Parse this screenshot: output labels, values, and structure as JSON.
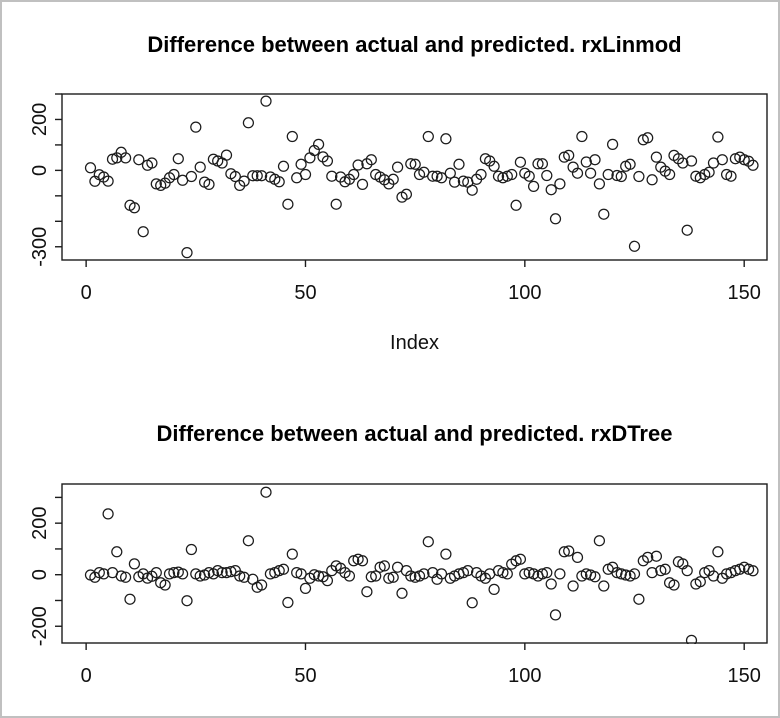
{
  "window": {
    "background": "#ffffff",
    "border_color": "#c0c0c0",
    "point_color": "#1c1c1c",
    "axis_color": "#1c1c1c"
  },
  "chart_data": [
    {
      "type": "scatter",
      "title": "Difference between actual and predicted. rxLinmod",
      "xlabel": "Index",
      "ylabel": "",
      "marker": "open-circle",
      "grid": false,
      "legend": "none",
      "x_description": "index 1..152 (implicit x = position in values array, starting at 1)",
      "xlim": [
        -5.5,
        155.2
      ],
      "ylim": [
        -352,
        300
      ],
      "x_ticks": [
        0,
        50,
        100,
        150
      ],
      "x_labeled_ticks": [
        0,
        50,
        100,
        150
      ],
      "y_ticks": [
        300,
        200,
        100,
        0,
        -100,
        -200,
        -300
      ],
      "y_labeled_ticks": [
        200,
        0,
        -300
      ],
      "values": [
        10,
        -43,
        -17,
        -26,
        -42,
        44,
        49,
        71,
        49,
        -137,
        -147,
        42,
        -241,
        20,
        29,
        -53,
        -59,
        -50,
        -29,
        -16,
        46,
        -39,
        -323,
        -24,
        170,
        13,
        -46,
        -55,
        44,
        37,
        29,
        60,
        -13,
        -24,
        -59,
        -42,
        187,
        -21,
        -21,
        -21,
        272,
        -26,
        -35,
        -45,
        16,
        -133,
        133,
        -29,
        24,
        -16,
        49,
        78,
        102,
        53,
        37,
        -23,
        -133,
        -26,
        -45,
        -35,
        -16,
        21,
        -55,
        26,
        42,
        -16,
        -26,
        -37,
        -53,
        -35,
        13,
        -105,
        -94,
        26,
        24,
        -16,
        -7,
        133,
        -23,
        -23,
        -29,
        124,
        -11,
        -46,
        24,
        -42,
        -46,
        -78,
        -35,
        -16,
        46,
        37,
        16,
        -23,
        -29,
        -23,
        -16,
        -137,
        32,
        -11,
        -23,
        -63,
        26,
        26,
        -20,
        -76,
        -190,
        -53,
        52,
        59,
        13,
        -11,
        133,
        33,
        -11,
        42,
        -53,
        -172,
        -16,
        102,
        -20,
        -24,
        16,
        24,
        -298,
        -24,
        120,
        128,
        -37,
        52,
        13,
        -3,
        -16,
        59,
        46,
        29,
        -235,
        37,
        -23,
        -29,
        -16,
        -7,
        29,
        131,
        42,
        -16,
        -23,
        46,
        52,
        42,
        36,
        20
      ]
    },
    {
      "type": "scatter",
      "title": "Difference between actual and predicted. rxDTree",
      "xlabel": "",
      "ylabel": "",
      "marker": "open-circle",
      "grid": false,
      "legend": "none",
      "x_description": "index 1..152 (implicit x = position in values array, starting at 1)",
      "xlim": [
        -5.5,
        155.2
      ],
      "ylim": [
        -265,
        352
      ],
      "x_ticks": [
        0,
        50,
        100,
        150
      ],
      "x_labeled_ticks": [
        0,
        50,
        100,
        150
      ],
      "y_ticks": [
        300,
        200,
        100,
        0,
        -100,
        -200
      ],
      "y_labeled_ticks": [
        200,
        0,
        -200
      ],
      "values": [
        -1,
        -10,
        8,
        3,
        236,
        8,
        89,
        -5,
        -10,
        -95,
        42,
        -8,
        3,
        -13,
        -6,
        8,
        -31,
        -40,
        3,
        8,
        10,
        3,
        -101,
        98,
        3,
        -5,
        -1,
        8,
        3,
        16,
        8,
        8,
        12,
        16,
        -5,
        -10,
        132,
        -18,
        -49,
        -40,
        320,
        3,
        8,
        16,
        21,
        -108,
        80,
        8,
        3,
        -53,
        -14,
        0,
        -5,
        -8,
        -23,
        16,
        34,
        25,
        8,
        -5,
        54,
        60,
        54,
        -66,
        -8,
        -5,
        29,
        34,
        -14,
        -10,
        29,
        -72,
        16,
        -5,
        -10,
        -5,
        3,
        128,
        8,
        -18,
        3,
        80,
        -14,
        -5,
        3,
        8,
        16,
        -109,
        8,
        -5,
        -14,
        3,
        -57,
        16,
        8,
        3,
        41,
        54,
        60,
        3,
        8,
        3,
        -5,
        3,
        8,
        -36,
        -156,
        3,
        89,
        92,
        -44,
        67,
        -5,
        3,
        -1,
        -8,
        132,
        -44,
        21,
        29,
        8,
        3,
        -1,
        -5,
        3,
        -95,
        54,
        67,
        8,
        72,
        16,
        21,
        -31,
        -40,
        50,
        42,
        16,
        -255,
        -36,
        -27,
        8,
        16,
        -5,
        89,
        -14,
        3,
        8,
        16,
        21,
        29,
        21,
        15
      ]
    }
  ]
}
